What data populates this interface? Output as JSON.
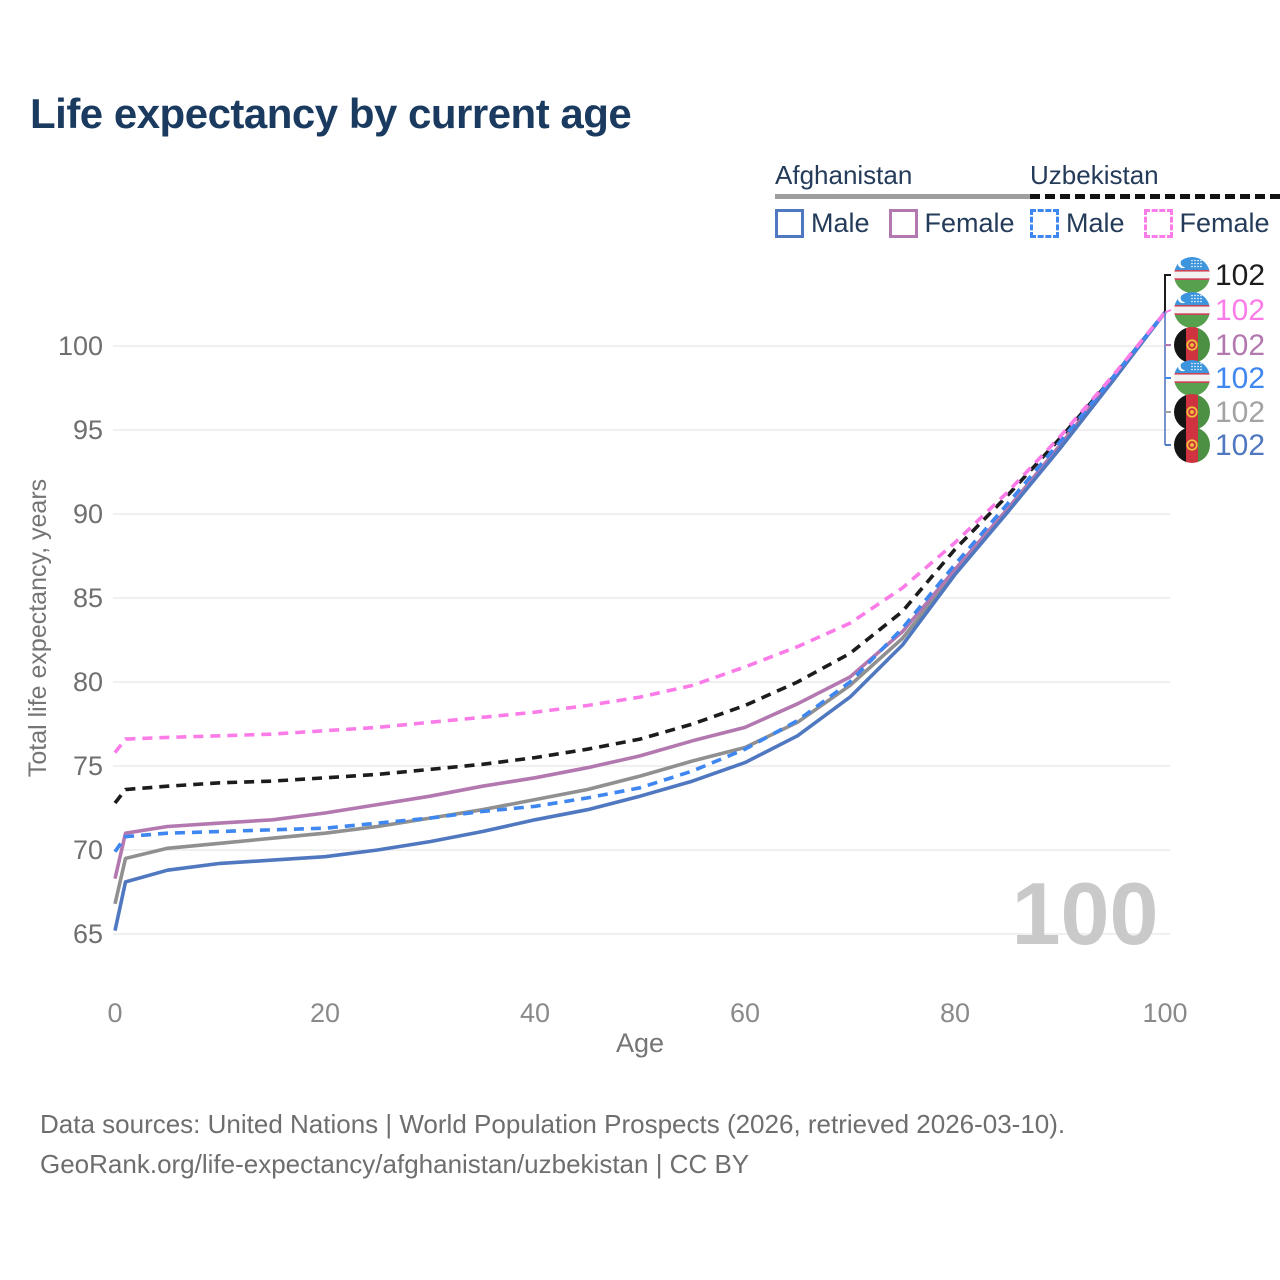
{
  "title": "Life expectancy by current age",
  "legend": {
    "groups": [
      {
        "country": "Afghanistan",
        "line_style": "solid",
        "underline_color": "#9e9e9e",
        "items": [
          {
            "label": "Male",
            "color": "#5078c0"
          },
          {
            "label": "Female",
            "color": "#b478b0"
          }
        ]
      },
      {
        "country": "Uzbekistan",
        "line_style": "dashed",
        "underline_color": "#121212",
        "items": [
          {
            "label": "Male",
            "color": "#3e86f0"
          },
          {
            "label": "Female",
            "color": "#fb7ce8"
          }
        ]
      }
    ]
  },
  "chart_data": {
    "type": "line",
    "title": "Life expectancy by current age",
    "xlabel": "Age",
    "ylabel": "Total life expectancy, years",
    "xlim": [
      0,
      100
    ],
    "ylim": [
      65,
      102
    ],
    "x_ticks": [
      0,
      20,
      40,
      60,
      80,
      100
    ],
    "y_ticks": [
      65,
      70,
      75,
      80,
      85,
      90,
      95,
      100
    ],
    "grid": "horizontal-only",
    "legend_position": "top-right",
    "x": [
      0,
      1,
      5,
      10,
      15,
      20,
      25,
      30,
      35,
      40,
      45,
      50,
      55,
      60,
      65,
      70,
      75,
      80,
      85,
      90,
      95,
      100
    ],
    "series": [
      {
        "id": "afg_male",
        "name": "Afghanistan Male",
        "country": "Afghanistan",
        "sex": "male",
        "line_style": "solid",
        "color": "#5078c0",
        "values": [
          65.2,
          68.1,
          68.8,
          69.2,
          69.4,
          69.6,
          70.0,
          70.5,
          71.1,
          71.8,
          72.4,
          73.2,
          74.1,
          75.2,
          76.8,
          79.1,
          82.2,
          86.4,
          90.1,
          93.9,
          97.9,
          102
        ]
      },
      {
        "id": "afg_female",
        "name": "Afghanistan Female",
        "country": "Afghanistan",
        "sex": "female",
        "line_style": "solid",
        "color": "#b478b0",
        "values": [
          68.3,
          71.0,
          71.4,
          71.6,
          71.8,
          72.2,
          72.7,
          73.2,
          73.8,
          74.3,
          74.9,
          75.6,
          76.5,
          77.3,
          78.7,
          80.3,
          83.0,
          86.7,
          90.3,
          94.1,
          98.0,
          102
        ]
      },
      {
        "id": "afg_all",
        "name": "Afghanistan",
        "country": "Afghanistan",
        "sex": "all",
        "line_style": "solid",
        "color": "#909090",
        "values": [
          66.8,
          69.5,
          70.1,
          70.4,
          70.7,
          71.0,
          71.4,
          71.9,
          72.4,
          73.0,
          73.6,
          74.4,
          75.3,
          76.1,
          77.6,
          79.8,
          82.6,
          86.5,
          90.2,
          94.0,
          98.0,
          102
        ]
      },
      {
        "id": "uzb_male",
        "name": "Uzbekistan Male",
        "country": "Uzbekistan",
        "sex": "male",
        "line_style": "dashed",
        "color": "#3e86f0",
        "values": [
          69.9,
          70.8,
          71.0,
          71.1,
          71.2,
          71.3,
          71.6,
          71.9,
          72.3,
          72.6,
          73.1,
          73.7,
          74.7,
          76.0,
          77.7,
          80.0,
          83.2,
          87.0,
          90.6,
          94.3,
          98.1,
          102
        ]
      },
      {
        "id": "uzb_female",
        "name": "Uzbekistan Female",
        "country": "Uzbekistan",
        "sex": "female",
        "line_style": "dashed",
        "color": "#fb7ce8",
        "values": [
          75.8,
          76.6,
          76.7,
          76.8,
          76.9,
          77.1,
          77.3,
          77.6,
          77.9,
          78.2,
          78.6,
          79.1,
          79.8,
          80.9,
          82.1,
          83.5,
          85.6,
          88.3,
          91.3,
          94.6,
          98.2,
          102
        ]
      },
      {
        "id": "uzb_all",
        "name": "Uzbekistan",
        "country": "Uzbekistan",
        "sex": "all",
        "line_style": "dashed",
        "color": "#1c1c1c",
        "values": [
          72.8,
          73.6,
          73.8,
          74.0,
          74.1,
          74.3,
          74.5,
          74.8,
          75.1,
          75.5,
          76.0,
          76.6,
          77.5,
          78.6,
          80.0,
          81.7,
          84.2,
          87.9,
          91.1,
          94.5,
          98.1,
          102
        ]
      }
    ]
  },
  "end_labels": [
    {
      "value": "102",
      "series": "Uzbekistan",
      "color": "#1c1c1c",
      "flag": "uz"
    },
    {
      "value": "102",
      "series": "Uzbekistan Female",
      "color": "#fb7ce8",
      "flag": "uz"
    },
    {
      "value": "102",
      "series": "Afghanistan Female",
      "color": "#b478b0",
      "flag": "af"
    },
    {
      "value": "102",
      "series": "Uzbekistan Male",
      "color": "#3e86f0",
      "flag": "uz"
    },
    {
      "value": "102",
      "series": "Afghanistan",
      "color": "#a3a3a3",
      "flag": "af"
    },
    {
      "value": "102",
      "series": "Afghanistan Male",
      "color": "#5078c0",
      "flag": "af"
    }
  ],
  "leaders": {
    "up_color": "#1c1c1c",
    "down_color": "#6a86c8"
  },
  "watermark": "100",
  "footer": {
    "line1": "Data sources: United Nations | World Population Prospects (2026, retrieved 2026-03-10).",
    "line2": "GeoRank.org/life-expectancy/afghanistan/uzbekistan | CC BY"
  }
}
